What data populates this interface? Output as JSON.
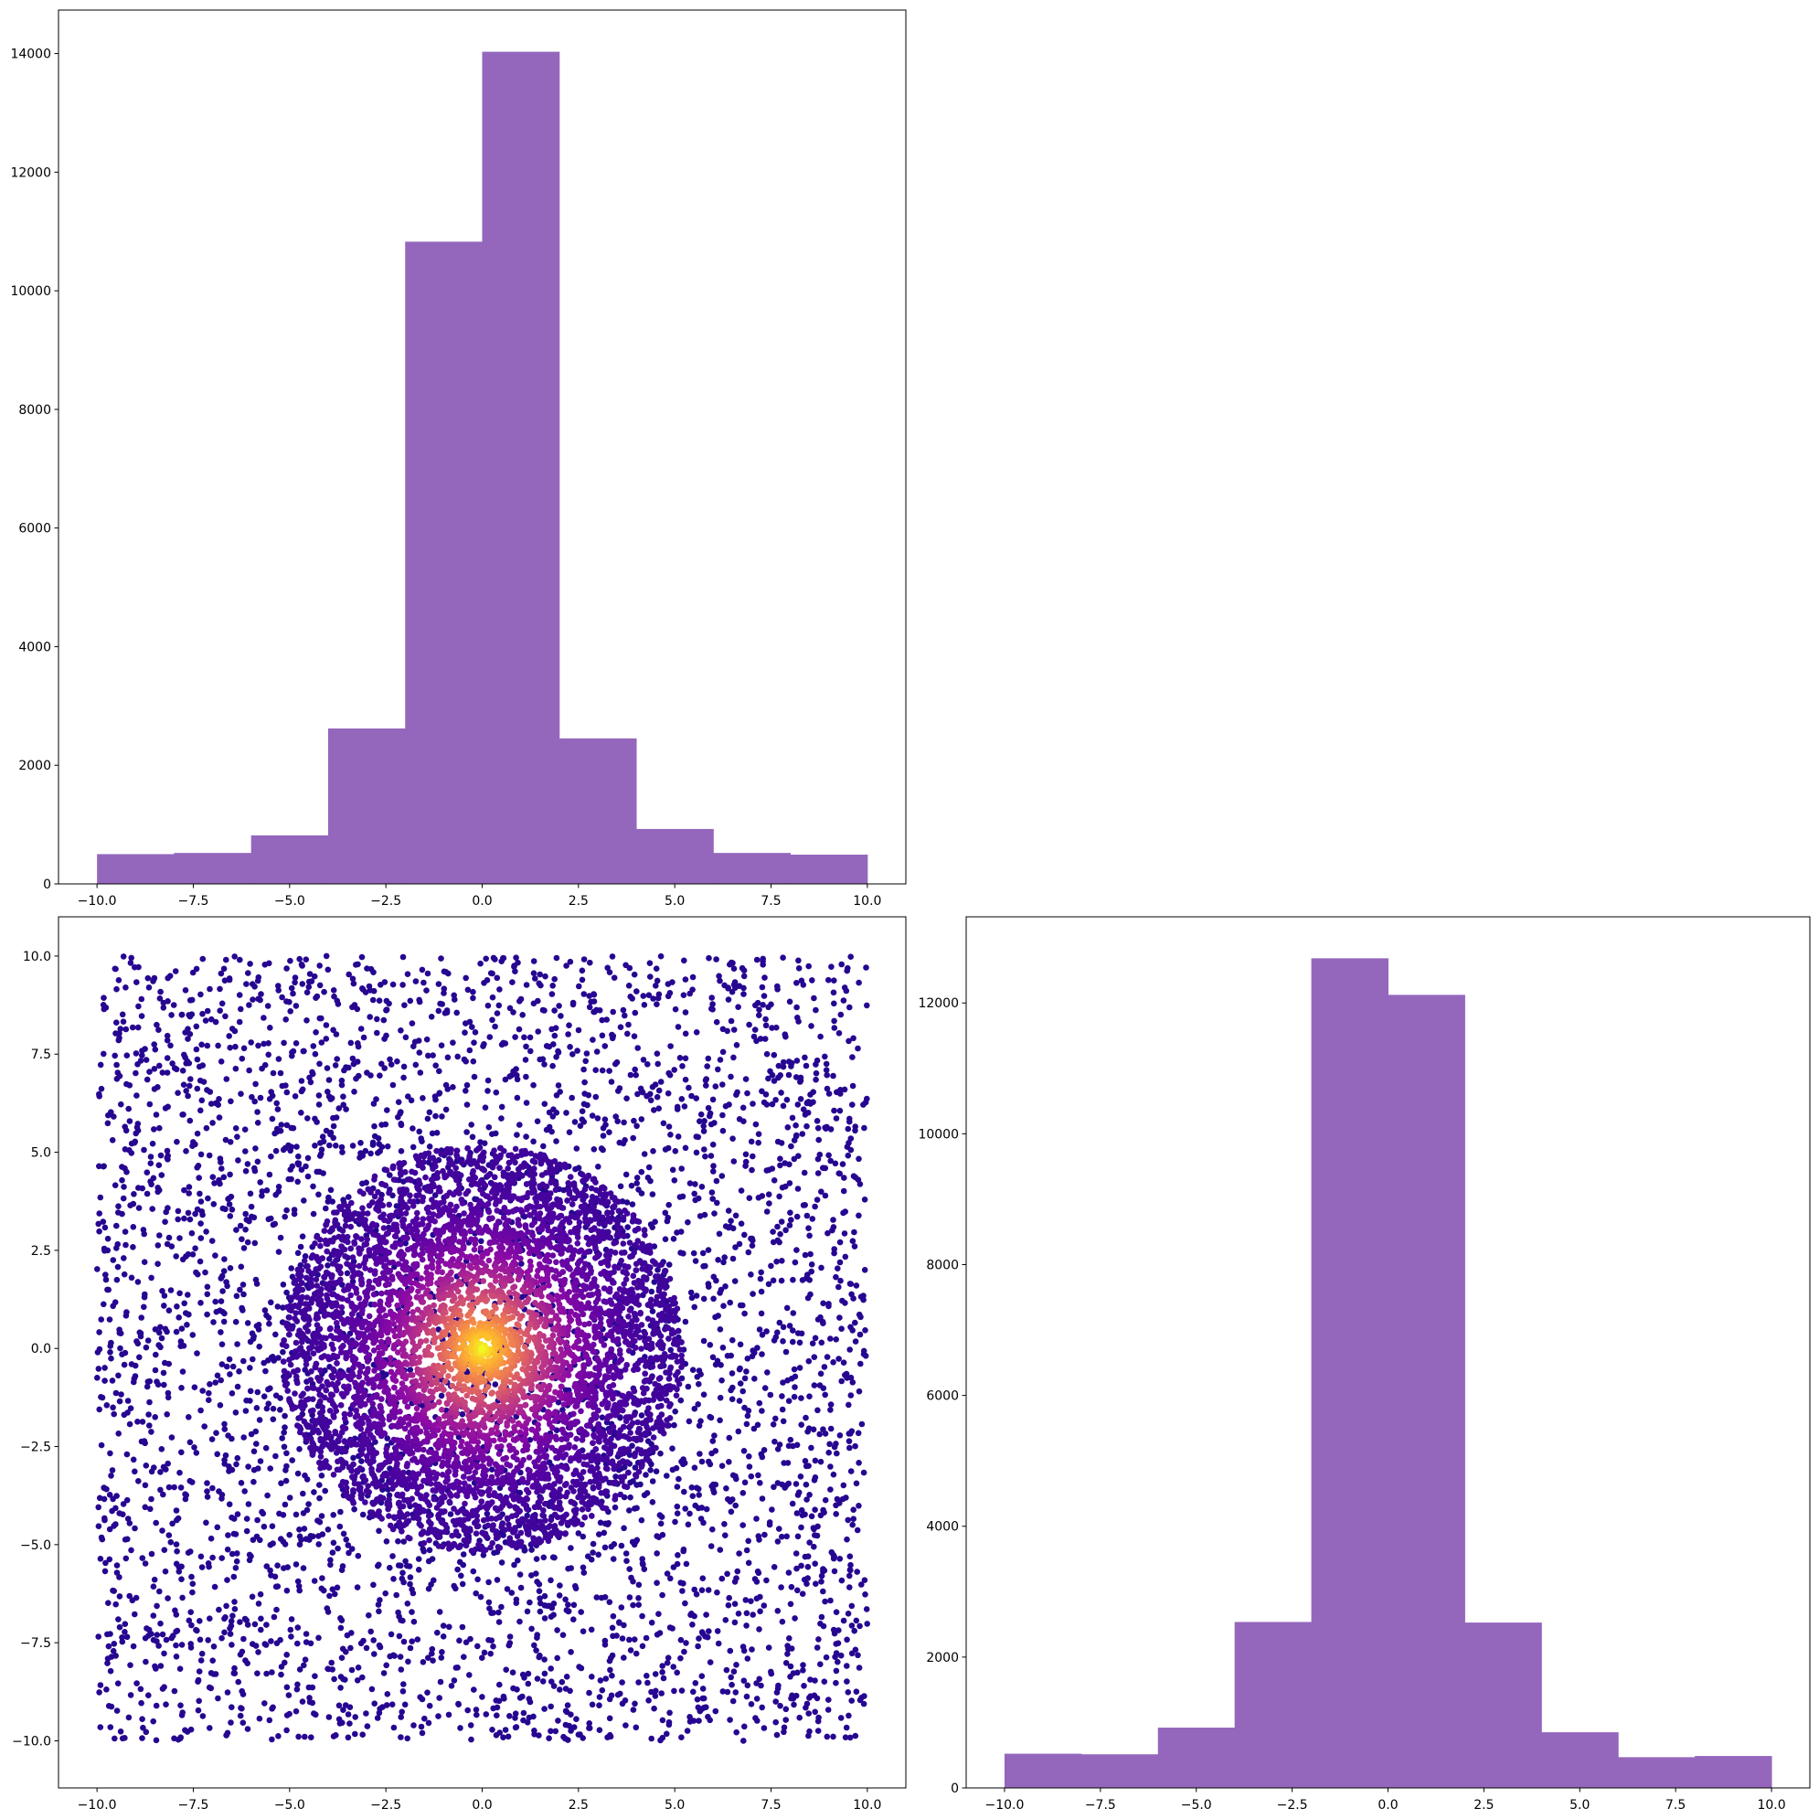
{
  "chart_data": [
    {
      "type": "bar",
      "panel": "top-left",
      "bin_edges": [
        -10,
        -8,
        -6,
        -4,
        -2,
        0,
        2,
        4,
        6,
        8,
        10
      ],
      "values": [
        502,
        522,
        818,
        2621,
        10828,
        14030,
        2453,
        926,
        522,
        493
      ],
      "color": "#9467bd",
      "xlim": [
        -11,
        11
      ],
      "ylim": [
        0,
        14733
      ],
      "xticks": [
        -10,
        -7.5,
        -5,
        -2.5,
        0,
        2.5,
        5,
        7.5,
        10
      ],
      "xtick_labels": [
        "−10.0",
        "−7.5",
        "−5.0",
        "−2.5",
        "0.0",
        "2.5",
        "5.0",
        "7.5",
        "10.0"
      ],
      "yticks": [
        0,
        2000,
        4000,
        6000,
        8000,
        10000,
        12000,
        14000
      ],
      "ytick_labels": [
        "0",
        "2000",
        "4000",
        "6000",
        "8000",
        "10000",
        "12000",
        "14000"
      ],
      "grid": false
    },
    {
      "type": "scatter",
      "panel": "bottom-left",
      "colormap": "plasma",
      "description_of_points": {
        "background": {
          "distribution": "uniform",
          "x_range": [
            -10,
            10
          ],
          "y_range": [
            -10,
            10
          ]
        },
        "core": {
          "distribution": "disk",
          "center": [
            0,
            0
          ],
          "radius": 5.2
        }
      },
      "xlim": [
        -11,
        11
      ],
      "ylim": [
        -11.2,
        11.0
      ],
      "xticks": [
        -10,
        -7.5,
        -5,
        -2.5,
        0,
        2.5,
        5,
        7.5,
        10
      ],
      "xtick_labels": [
        "−10.0",
        "−7.5",
        "−5.0",
        "−2.5",
        "0.0",
        "2.5",
        "5.0",
        "7.5",
        "10.0"
      ],
      "yticks": [
        -10,
        -7.5,
        -5,
        -2.5,
        0,
        2.5,
        5,
        7.5,
        10
      ],
      "ytick_labels": [
        "−10.0",
        "−7.5",
        "−5.0",
        "−2.5",
        "0.0",
        "2.5",
        "5.0",
        "7.5",
        "10.0"
      ],
      "grid": false
    },
    {
      "type": "bar",
      "panel": "bottom-right",
      "bin_edges": [
        -10,
        -8,
        -6,
        -4,
        -2,
        0,
        2,
        4,
        6,
        8,
        10
      ],
      "values": [
        523,
        514,
        922,
        2537,
        12683,
        12124,
        2528,
        851,
        470,
        488
      ],
      "color": "#9467bd",
      "xlim": [
        -11,
        11
      ],
      "ylim": [
        0,
        13317
      ],
      "xticks": [
        -10,
        -7.5,
        -5,
        -2.5,
        0,
        2.5,
        5,
        7.5,
        10
      ],
      "xtick_labels": [
        "−10.0",
        "−7.5",
        "−5.0",
        "−2.5",
        "0.0",
        "2.5",
        "5.0",
        "7.5",
        "10.0"
      ],
      "yticks": [
        0,
        2000,
        4000,
        6000,
        8000,
        10000,
        12000
      ],
      "ytick_labels": [
        "0",
        "2000",
        "4000",
        "6000",
        "8000",
        "10000",
        "12000"
      ],
      "grid": false
    }
  ]
}
